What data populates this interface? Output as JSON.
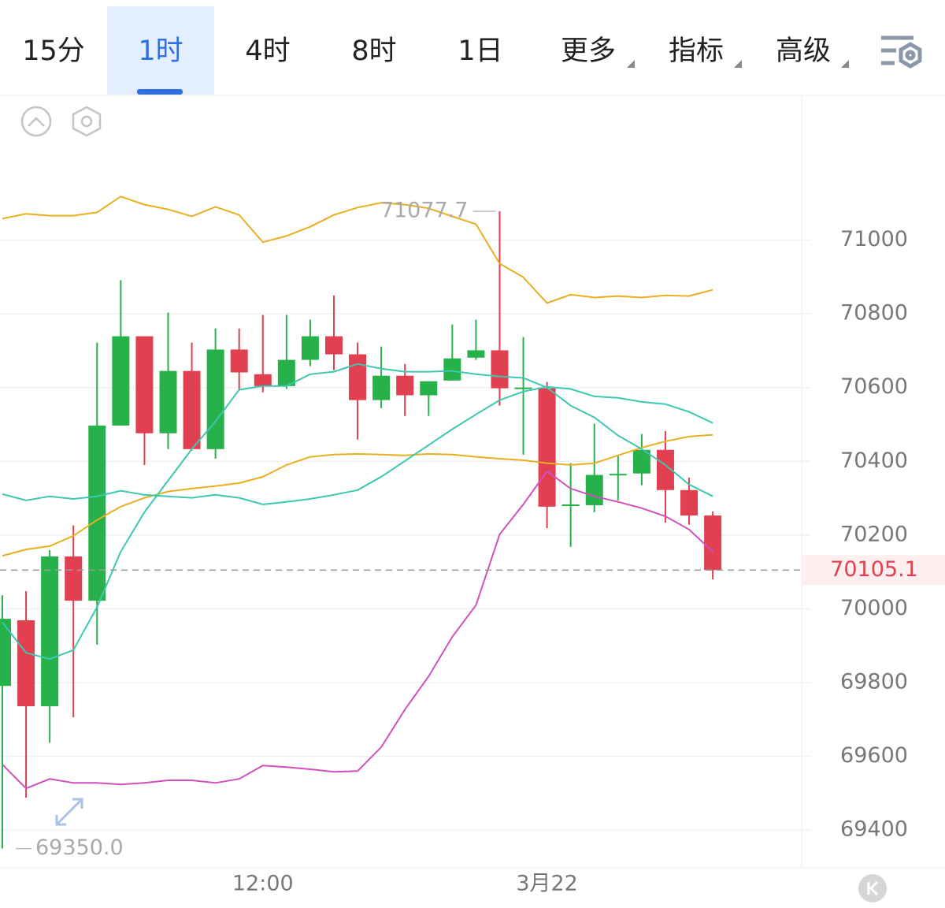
{
  "tabs": [
    "15分",
    "1时",
    "4时",
    "8时",
    "1日",
    "更多",
    "指标",
    "高级"
  ],
  "active_tab": 1,
  "chart_data": {
    "type": "candlestick",
    "categories": [
      null,
      null,
      null,
      null,
      null,
      null,
      null,
      null,
      null,
      null,
      null,
      "12:00",
      null,
      null,
      null,
      null,
      null,
      null,
      null,
      null,
      null,
      null,
      null,
      "3月22",
      null,
      null,
      null,
      null,
      null,
      null,
      null
    ],
    "open": [
      69791,
      69969,
      69736,
      70142,
      70022,
      70497,
      70739,
      70476,
      70645,
      70433,
      70703,
      70636,
      70604,
      70675,
      70739,
      70690,
      70566,
      70632,
      70579,
      70619,
      70681,
      70701,
      70598,
      70598,
      70281,
      70281,
      70363,
      70367,
      70431,
      70322,
      70253
    ],
    "high": [
      70037,
      70048,
      70159,
      70226,
      70722,
      70891,
      70739,
      70803,
      70722,
      70760,
      70760,
      70797,
      70797,
      70784,
      70850,
      70722,
      70711,
      70664,
      70617,
      70771,
      70784,
      71077.7,
      70737,
      70615,
      70395,
      70502,
      70416,
      70474,
      70482,
      70356,
      70264
    ],
    "low": [
      69350,
      69488,
      69637,
      69706,
      69903,
      70497,
      70390,
      70433,
      70429,
      70407,
      70596,
      70587,
      70596,
      70658,
      70647,
      70459,
      70544,
      70523,
      70523,
      70619,
      70675,
      70551,
      70418,
      70219,
      70168,
      70262,
      70294,
      70335,
      70234,
      70228,
      70080
    ],
    "close": [
      69973,
      69736,
      70142,
      70022,
      70497,
      70739,
      70476,
      70645,
      70433,
      70703,
      70641,
      70604,
      70675,
      70739,
      70690,
      70566,
      70632,
      70579,
      70617,
      70679,
      70701,
      70598,
      70600,
      70277,
      70283,
      70363,
      70366,
      70431,
      70322,
      70253,
      70105.1
    ],
    "up_color": "#27b14b",
    "down_color": "#e0404f",
    "lines": [
      {
        "color": "#e8b020",
        "values": [
          71058,
          71071,
          71066,
          71066,
          71075,
          71118,
          71096,
          71083,
          71064,
          71090,
          71068,
          70994,
          71011,
          71036,
          71068,
          71088,
          71101,
          71096,
          71086,
          71064,
          71043,
          70936,
          70899,
          70829,
          70852,
          70844,
          70848,
          70844,
          70850,
          70848,
          70865
        ]
      },
      {
        "color": "#e8b020",
        "values": [
          70144,
          70161,
          70170,
          70198,
          70241,
          70277,
          70301,
          70318,
          70326,
          70333,
          70341,
          70358,
          70390,
          70412,
          70418,
          70420,
          70418,
          70416,
          70420,
          70418,
          70412,
          70407,
          70403,
          70395,
          70390,
          70395,
          70416,
          70437,
          70454,
          70467,
          70472
        ]
      },
      {
        "color": "#3cc8b0",
        "values": [
          70311,
          70294,
          70305,
          70298,
          70305,
          70320,
          70309,
          70305,
          70301,
          70309,
          70301,
          70283,
          70290,
          70298,
          70309,
          70322,
          70358,
          70401,
          70444,
          70487,
          70527,
          70566,
          70589,
          70602,
          70596,
          70576,
          70572,
          70561,
          70555,
          70534,
          70504
        ]
      },
      {
        "color": "#3cc8b0",
        "values": [
          69963,
          69881,
          69864,
          69888,
          70005,
          70155,
          70262,
          70348,
          70433,
          70508,
          70594,
          70604,
          70604,
          70636,
          70643,
          70664,
          70651,
          70643,
          70643,
          70645,
          70636,
          70630,
          70626,
          70600,
          70551,
          70519,
          70470,
          70433,
          70390,
          70337,
          70305
        ]
      },
      {
        "color": "#d24fbf",
        "values": [
          69578,
          69513,
          69539,
          69528,
          69528,
          69524,
          69528,
          69535,
          69535,
          69528,
          69539,
          69575,
          69571,
          69565,
          69558,
          69560,
          69625,
          69727,
          69817,
          69924,
          70010,
          70202,
          70283,
          70373,
          70326,
          70305,
          70290,
          70273,
          70251,
          70215,
          70155
        ]
      }
    ],
    "high_marker": {
      "value": 71077.7,
      "label": "71077.7"
    },
    "low_marker": {
      "value": 69350,
      "label": "69350.0"
    },
    "last_price": {
      "value": 70105.1,
      "label": "70105.1"
    },
    "ylim": [
      69300,
      71390
    ],
    "yticks": [
      69400,
      69600,
      69800,
      70000,
      70200,
      70400,
      70600,
      70800,
      71000
    ],
    "grid": true
  }
}
